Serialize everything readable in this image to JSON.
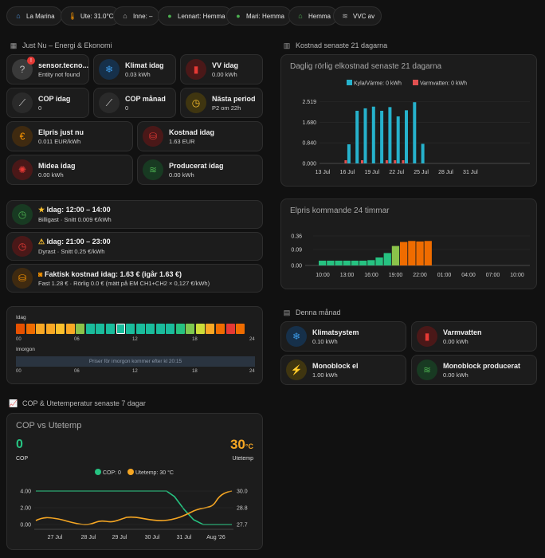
{
  "chips": [
    {
      "icon": "house-icon",
      "color": "#4a8fd9",
      "label": "La Marina"
    },
    {
      "icon": "thermometer-icon",
      "color": "#ff9800",
      "label": "Ute: 31.0°C"
    },
    {
      "icon": "home-icon",
      "color": "#b0b0b0",
      "label": "Inne: –"
    },
    {
      "icon": "person-icon",
      "color": "#4caf50",
      "label": "Lennart: Hemma"
    },
    {
      "icon": "person-icon",
      "color": "#4caf50",
      "label": "Mari: Hemma"
    },
    {
      "icon": "house-icon",
      "color": "#4caf50",
      "label": "Hemma"
    },
    {
      "icon": "wifi-icon",
      "color": "#b0b0b0",
      "label": "VVC av"
    }
  ],
  "sections": {
    "just_nu": "Just Nu – Energi & Ekonomi",
    "kostnad21": "Kostnad senaste 21 dagarna",
    "denna": "Denna månad",
    "cop": "COP & Utetemperatur senaste 7 dagar"
  },
  "tiles": {
    "sensor": {
      "t1": "sensor.tecno...",
      "t2": "Entity not found"
    },
    "klimat": {
      "t1": "Klimat idag",
      "t2": "0.03 kWh"
    },
    "vv": {
      "t1": "VV idag",
      "t2": "0.00 kWh"
    },
    "cop_idag": {
      "t1": "COP idag",
      "t2": "0"
    },
    "cop_manad": {
      "t1": "COP månad",
      "t2": "0"
    },
    "nasta": {
      "t1": "Nästa period",
      "t2": "P2 om 22h"
    },
    "elpris": {
      "t1": "Elpris just nu",
      "t2": "0.011 EUR/kWh"
    },
    "kostnad": {
      "t1": "Kostnad idag",
      "t2": "1.63 EUR"
    },
    "midea": {
      "t1": "Midea idag",
      "t2": "0.00 kWh"
    },
    "producerat": {
      "t1": "Producerat idag",
      "t2": "0.00 kWh"
    }
  },
  "periods": {
    "billig": {
      "t1": "Idag: 12:00 – 14:00",
      "t2": "Billigast · Snitt 0.009 €/kWh"
    },
    "dyr": {
      "t1": "Idag: 21:00 – 23:00",
      "t2": "Dyrast · Snitt 0.25 €/kWh"
    },
    "faktisk": {
      "t1": "Faktisk kostnad idag: 1.63 € (igår 1.63 €)",
      "t2": "Fast 1.28 € · Rörlig 0.0 € (mätt på EM CH1+CH2 × 0,127 €/kWh)"
    }
  },
  "heat": {
    "idag": "Idag",
    "imorgon": "Imorgon",
    "ticks": [
      "00",
      "06",
      "12",
      "18",
      "24"
    ],
    "message": "Priser för imorgon kommer efter kl 20:15",
    "colors": [
      "#e65100",
      "#ef6c00",
      "#f9a825",
      "#f9a825",
      "#fbc02d",
      "#f9a825",
      "#8bc34a",
      "#1abc9c",
      "#1abc9c",
      "#1abc9c",
      "#1abc9c",
      "#1abc9c",
      "#1abc9c",
      "#1abc9c",
      "#1abc9c",
      "#1abc9c",
      "#26c281",
      "#7ec850",
      "#cddc39",
      "#f9a825",
      "#ef6c00",
      "#e53935",
      "#ef6c00"
    ]
  },
  "month": {
    "klimatsystem": {
      "t1": "Klimatsystem",
      "t2": "0.10 kWh"
    },
    "varmvatten": {
      "t1": "Varmvatten",
      "t2": "0.00 kWh"
    },
    "mono_el": {
      "t1": "Monoblock el",
      "t2": "1.00 kWh"
    },
    "mono_prod": {
      "t1": "Monoblock producerat",
      "t2": "0.00 kWh"
    }
  },
  "chart_data": [
    {
      "type": "bar",
      "title": "Daglig rörlig elkostnad senaste 21 dagarna",
      "legend": [
        "Kyla/Värme: 0 kWh",
        "Varmvatten: 0 kWh"
      ],
      "series_colors": [
        "#26b2cc",
        "#e05050"
      ],
      "yticks": [
        "0.000",
        "0.840",
        "1.680",
        "2.519"
      ],
      "ylim": [
        0,
        2.8
      ],
      "xticks": [
        "13 Jul",
        "16 Jul",
        "19 Jul",
        "22 Jul",
        "25 Jul",
        "28 Jul",
        "31 Jul"
      ],
      "x": [
        "16 Jul",
        "17 Jul",
        "18 Jul",
        "19 Jul",
        "20 Jul",
        "21 Jul",
        "22 Jul",
        "23 Jul",
        "24 Jul",
        "25 Jul"
      ],
      "values": [
        0.78,
        2.15,
        2.25,
        2.32,
        2.15,
        2.3,
        1.92,
        2.17,
        2.5,
        0.8
      ],
      "varmvatten": [
        0,
        0,
        0,
        0,
        0,
        0,
        0,
        0,
        0,
        0
      ]
    },
    {
      "type": "bar",
      "title": "Elpris kommande 24 timmar",
      "yticks": [
        "0.00",
        "0.09",
        "0.36"
      ],
      "xticks": [
        "10:00",
        "13:00",
        "16:00",
        "19:00",
        "22:00",
        "01:00",
        "04:00",
        "07:00",
        "10:00"
      ],
      "x": [
        "10",
        "11",
        "12",
        "13",
        "14",
        "15",
        "16",
        "17",
        "18",
        "19",
        "20",
        "21",
        "22",
        "23"
      ],
      "values": [
        0.012,
        0.01,
        0.01,
        0.009,
        0.011,
        0.02,
        0.03,
        0.045,
        0.07,
        0.16,
        0.24,
        0.26,
        0.25,
        0.26
      ],
      "colors": [
        "#26c281",
        "#26c281",
        "#26c281",
        "#26c281",
        "#26c281",
        "#26c281",
        "#26c281",
        "#26c281",
        "#26c281",
        "#8bc34a",
        "#ef6c00",
        "#ef6c00",
        "#ef6c00",
        "#ef6c00"
      ]
    },
    {
      "type": "line",
      "title": "COP vs Utetemp",
      "cop_value": "0",
      "cop_label": "COP",
      "temp_value": "30",
      "temp_unit": "°C",
      "temp_label": "Utetemp",
      "legend": [
        "COP: 0",
        "Utetemp: 30 °C"
      ],
      "series_colors": [
        "#26c281",
        "#f5a623"
      ],
      "yticks_left": [
        "0.00",
        "2.00",
        "4.00"
      ],
      "yticks_right": [
        "27.7",
        "28.8",
        "30.0"
      ],
      "xticks": [
        "27 Jul",
        "28 Jul",
        "29 Jul",
        "30 Jul",
        "31 Jul",
        "Aug '26"
      ]
    }
  ]
}
